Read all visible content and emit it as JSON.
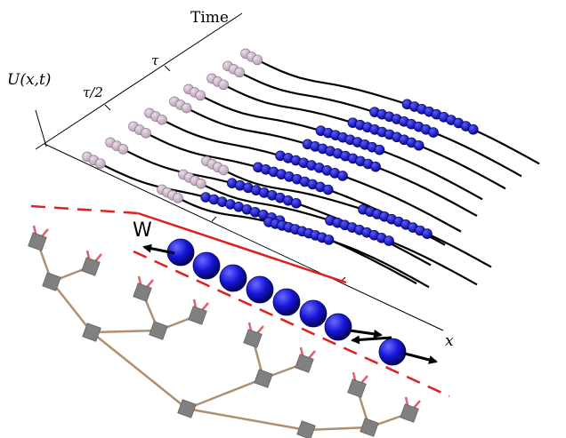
{
  "labels": {
    "time_axis": "Time",
    "tau": "τ",
    "tau_half": "τ/2",
    "u_axis": "U(x,t)",
    "x_axis": "x",
    "w_label": "W"
  },
  "colors": {
    "walker_blue": "#1010d0",
    "pale_particle": "#c9b6c6",
    "curve": "#000000",
    "tree_link": "#b09070",
    "tree_node": "#808080",
    "leaf_stub": "#e06070",
    "dashed_line": "#e02020",
    "solid_line": "#e02020"
  }
}
